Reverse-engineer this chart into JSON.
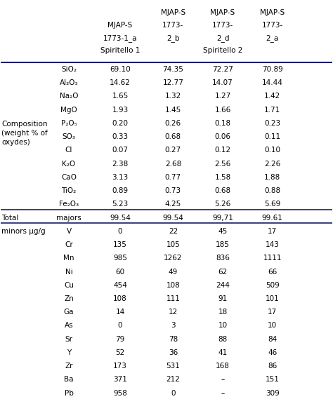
{
  "header_lines": [
    [
      "",
      "MJAP-S\n1773-1_a\nSpiritello 1",
      "MJAP-S\n1773-\n2_b",
      "MJAP-S\n1773-\n2_d\nSpiritello 2",
      "MJAP-S\n1773-\n2_a"
    ],
    [
      "top_label",
      "",
      "MJAP-S",
      "MJAP-S",
      "MJAP-S"
    ]
  ],
  "col1_labels": [
    "SiO₂",
    "Al₂O₃",
    "Na₂O",
    "MgO",
    "P₂O₅",
    "SO₃",
    "Cl",
    "K₂O",
    "CaO",
    "TiO₂",
    "Fe₂O₃",
    "majors",
    "V",
    "Cr",
    "Mn",
    "Ni",
    "Cu",
    "Zn",
    "Ga",
    "As",
    "Sr",
    "Y",
    "Zr",
    "Ba",
    "Pb"
  ],
  "col2_vals": [
    "69.10",
    "14.62",
    "1.65",
    "1.93",
    "0.20",
    "0.33",
    "0.07",
    "2.38",
    "3.13",
    "0.89",
    "5.23",
    "99.54",
    "0",
    "135",
    "985",
    "60",
    "454",
    "108",
    "14",
    "0",
    "79",
    "52",
    "173",
    "371",
    "958"
  ],
  "col3_vals": [
    "74.35",
    "12.77",
    "1.32",
    "1.45",
    "0.26",
    "0.68",
    "0.27",
    "2.68",
    "0.77",
    "0.73",
    "4.25",
    "99.54",
    "22",
    "105",
    "1262",
    "49",
    "108",
    "111",
    "12",
    "3",
    "78",
    "36",
    "531",
    "212",
    "0"
  ],
  "col4_vals": [
    "72.27",
    "14.07",
    "1.27",
    "1.66",
    "0.18",
    "0.06",
    "0.12",
    "2.56",
    "1.58",
    "0.68",
    "5.26",
    "99,71",
    "45",
    "185",
    "836",
    "62",
    "244",
    "91",
    "18",
    "10",
    "88",
    "41",
    "168",
    "–",
    "–"
  ],
  "col5_vals": [
    "70.89",
    "14.44",
    "1.42",
    "1.71",
    "0.23",
    "0.11",
    "0.10",
    "2.26",
    "1.88",
    "0.88",
    "5.69",
    "99.61",
    "17",
    "143",
    "1111",
    "66",
    "509",
    "101",
    "17",
    "10",
    "84",
    "46",
    "86",
    "151",
    "309"
  ],
  "col0_labels": {
    "0": "Composition\n(weight % of\noxydes)",
    "11": "Total",
    "12": "minors μg/g"
  },
  "n_composition": 11,
  "n_total": 1,
  "n_minors": 13,
  "background_color": "#ffffff",
  "line_color": "#1a1a6e",
  "text_color": "#000000",
  "font_size": 7.5
}
